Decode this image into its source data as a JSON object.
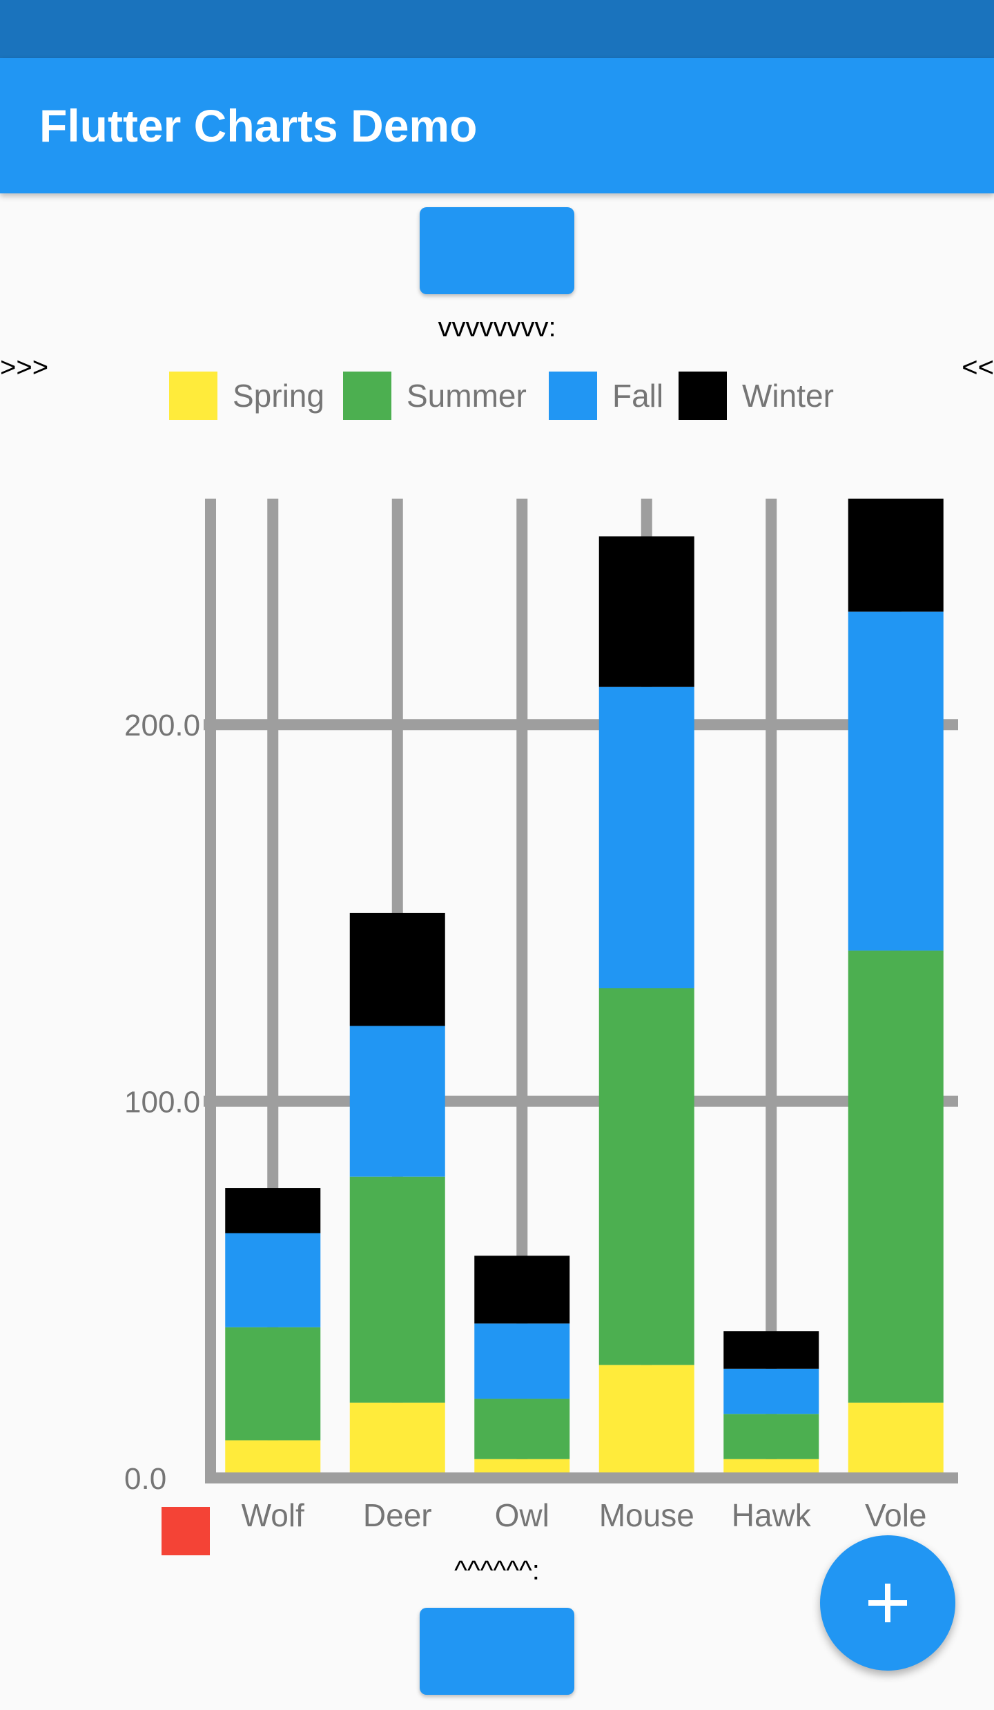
{
  "app": {
    "title": "Flutter Charts Demo"
  },
  "markers": {
    "top": "vvvvvvvv:",
    "left": ">>>",
    "right": "<<",
    "bottom": "^^^^^^:"
  },
  "colors": {
    "app_bar": "#2196f3",
    "status_bar": "#1a73bd",
    "grid": "#9e9e9e",
    "axis_text": "#757575",
    "fab": "#2196f3"
  },
  "fab": {
    "icon": "plus-icon"
  },
  "chart_data": {
    "type": "bar",
    "stacked": true,
    "title": "",
    "xlabel": "",
    "ylabel": "",
    "categories": [
      "Wolf",
      "Deer",
      "Owl",
      "Mouse",
      "Hawk",
      "Vole"
    ],
    "series": [
      {
        "name": "Spring",
        "color": "#ffeb3b",
        "values": [
          10,
          20,
          5,
          30,
          5,
          20
        ]
      },
      {
        "name": "Summer",
        "color": "#4caf50",
        "values": [
          30,
          60,
          16,
          100,
          12,
          120
        ]
      },
      {
        "name": "Fall",
        "color": "#2196f3",
        "values": [
          25,
          40,
          20,
          80,
          12,
          90
        ]
      },
      {
        "name": "Winter",
        "color": "#000000",
        "values": [
          12,
          30,
          18,
          40,
          10,
          30
        ]
      }
    ],
    "ylim": [
      0,
      260
    ],
    "yticks": [
      {
        "value": 0,
        "label": "0.0"
      },
      {
        "value": 100,
        "label": "100.0"
      },
      {
        "value": 200,
        "label": "200.0"
      }
    ],
    "grid": true,
    "legend": "top",
    "extra_legend": {
      "color": "#f44336",
      "placement": "bottom-left"
    }
  }
}
